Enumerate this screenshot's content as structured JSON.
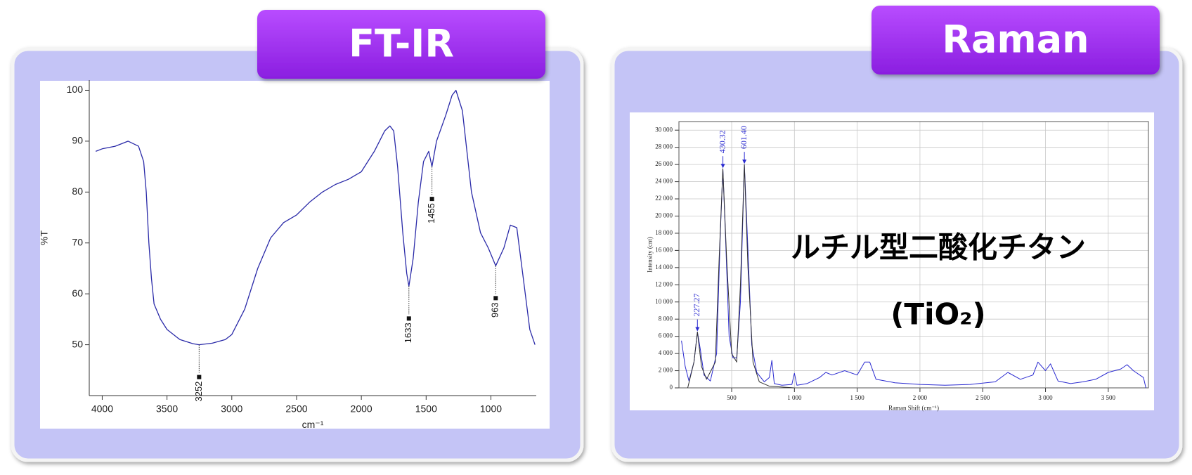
{
  "panels": [
    {
      "label": "FT-IR"
    },
    {
      "label": "Raman"
    }
  ],
  "chart_data": [
    {
      "type": "line",
      "xlabel": "cm⁻¹",
      "ylabel": "%T",
      "xlim": [
        4100,
        650
      ],
      "ylim": [
        40,
        102
      ],
      "xticks": [
        4000,
        3500,
        3000,
        2500,
        2000,
        1500,
        1000
      ],
      "yticks": [
        50,
        60,
        70,
        80,
        90,
        100
      ],
      "grid": false,
      "series": [
        {
          "color": "#2a2aa8",
          "x": [
            4050,
            4000,
            3900,
            3800,
            3720,
            3680,
            3660,
            3640,
            3620,
            3600,
            3550,
            3500,
            3400,
            3300,
            3252,
            3150,
            3050,
            3000,
            2900,
            2800,
            2700,
            2600,
            2500,
            2400,
            2300,
            2200,
            2100,
            2000,
            1900,
            1820,
            1780,
            1750,
            1720,
            1680,
            1650,
            1633,
            1600,
            1560,
            1520,
            1480,
            1455,
            1420,
            1350,
            1300,
            1270,
            1220,
            1150,
            1080,
            1020,
            963,
            900,
            850,
            800,
            750,
            700,
            660
          ],
          "values": [
            88,
            88.5,
            89,
            90,
            89,
            86,
            80,
            70,
            63,
            58,
            55,
            53,
            51,
            50.2,
            50,
            50.3,
            51,
            52,
            57,
            65,
            71,
            74,
            75.5,
            78,
            80,
            81.5,
            82.5,
            84,
            88,
            92,
            93,
            92,
            85,
            72,
            64,
            61.5,
            67,
            78,
            86,
            88,
            85,
            90,
            95,
            99,
            100,
            96,
            80,
            72,
            69,
            65.5,
            69,
            73.5,
            73,
            63,
            53,
            50
          ]
        }
      ],
      "annotations": [
        {
          "x": 3252,
          "y": 50,
          "label": "3252"
        },
        {
          "x": 1633,
          "y": 61.5,
          "label": "1633"
        },
        {
          "x": 1455,
          "y": 85,
          "label": "1455"
        },
        {
          "x": 963,
          "y": 65.5,
          "label": "963"
        }
      ]
    },
    {
      "type": "line",
      "xlabel": "Raman Shift (cm⁻¹)",
      "ylabel": "Intensity (cnt)",
      "xlim": [
        80,
        3820
      ],
      "ylim": [
        0,
        31000
      ],
      "xticks": [
        500,
        {
          "value": 1000,
          "label": "1 000"
        },
        {
          "value": 1500,
          "label": "1 500"
        },
        {
          "value": 2000,
          "label": "2 000"
        },
        {
          "value": 2500,
          "label": "2 500"
        },
        {
          "value": 3000,
          "label": "3 000"
        },
        {
          "value": 3500,
          "label": "3 500"
        }
      ],
      "yticks": [
        0,
        {
          "value": 2000,
          "label": "2 000"
        },
        {
          "value": 4000,
          "label": "4 000"
        },
        {
          "value": 6000,
          "label": "6 000"
        },
        {
          "value": 8000,
          "label": "8 000"
        },
        {
          "value": 10000,
          "label": "10 000"
        },
        {
          "value": 12000,
          "label": "12 000"
        },
        {
          "value": 14000,
          "label": "14 000"
        },
        {
          "value": 16000,
          "label": "16 000"
        },
        {
          "value": 18000,
          "label": "18 000"
        },
        {
          "value": 20000,
          "label": "20 000"
        },
        {
          "value": 22000,
          "label": "22 000"
        },
        {
          "value": 24000,
          "label": "24 000"
        },
        {
          "value": 26000,
          "label": "26 000"
        },
        {
          "value": 28000,
          "label": "28 000"
        },
        {
          "value": 30000,
          "label": "30 000"
        }
      ],
      "grid": true,
      "series": [
        {
          "color": "#2a2ad0",
          "x": [
            100,
            130,
            160,
            200,
            227,
            250,
            280,
            330,
            380,
            410,
            430,
            450,
            480,
            510,
            540,
            570,
            601,
            630,
            660,
            700,
            760,
            800,
            820,
            840,
            900,
            980,
            1000,
            1020,
            1100,
            1200,
            1250,
            1300,
            1400,
            1500,
            1560,
            1600,
            1650,
            1800,
            2000,
            2200,
            2400,
            2600,
            2700,
            2800,
            2900,
            2940,
            3000,
            3040,
            3100,
            3200,
            3300,
            3400,
            3500,
            3600,
            3650,
            3700,
            3780,
            3800
          ],
          "values": [
            5500,
            2500,
            800,
            3000,
            6500,
            4500,
            1500,
            800,
            4000,
            18000,
            25500,
            18000,
            6000,
            3500,
            3500,
            10000,
            26000,
            16000,
            5000,
            1800,
            700,
            1200,
            3200,
            500,
            300,
            400,
            1700,
            300,
            500,
            1200,
            1800,
            1500,
            2000,
            1500,
            3000,
            3000,
            1000,
            600,
            400,
            300,
            400,
            700,
            1800,
            1000,
            1500,
            3000,
            2000,
            2800,
            800,
            500,
            700,
            1000,
            1800,
            2200,
            2700,
            2000,
            1200,
            0
          ]
        },
        {
          "color": "#303030",
          "x": [
            150,
            200,
            227,
            260,
            300,
            370,
            400,
            430,
            460,
            500,
            540,
            570,
            601,
            630,
            670,
            720,
            800,
            1000
          ],
          "values": [
            0,
            3000,
            6500,
            2500,
            1000,
            3000,
            15000,
            25500,
            15000,
            4000,
            3000,
            12000,
            26000,
            14000,
            3000,
            700,
            200,
            0
          ]
        }
      ],
      "annotations": [
        {
          "x": 227.27,
          "y": 6500,
          "label": "227.27"
        },
        {
          "x": 430.32,
          "y": 25500,
          "label": "430.32"
        },
        {
          "x": 601.4,
          "y": 26000,
          "label": "601.40"
        }
      ],
      "overlay": [
        "ルチル型二酸化チタン",
        "(TiO₂)"
      ]
    }
  ]
}
